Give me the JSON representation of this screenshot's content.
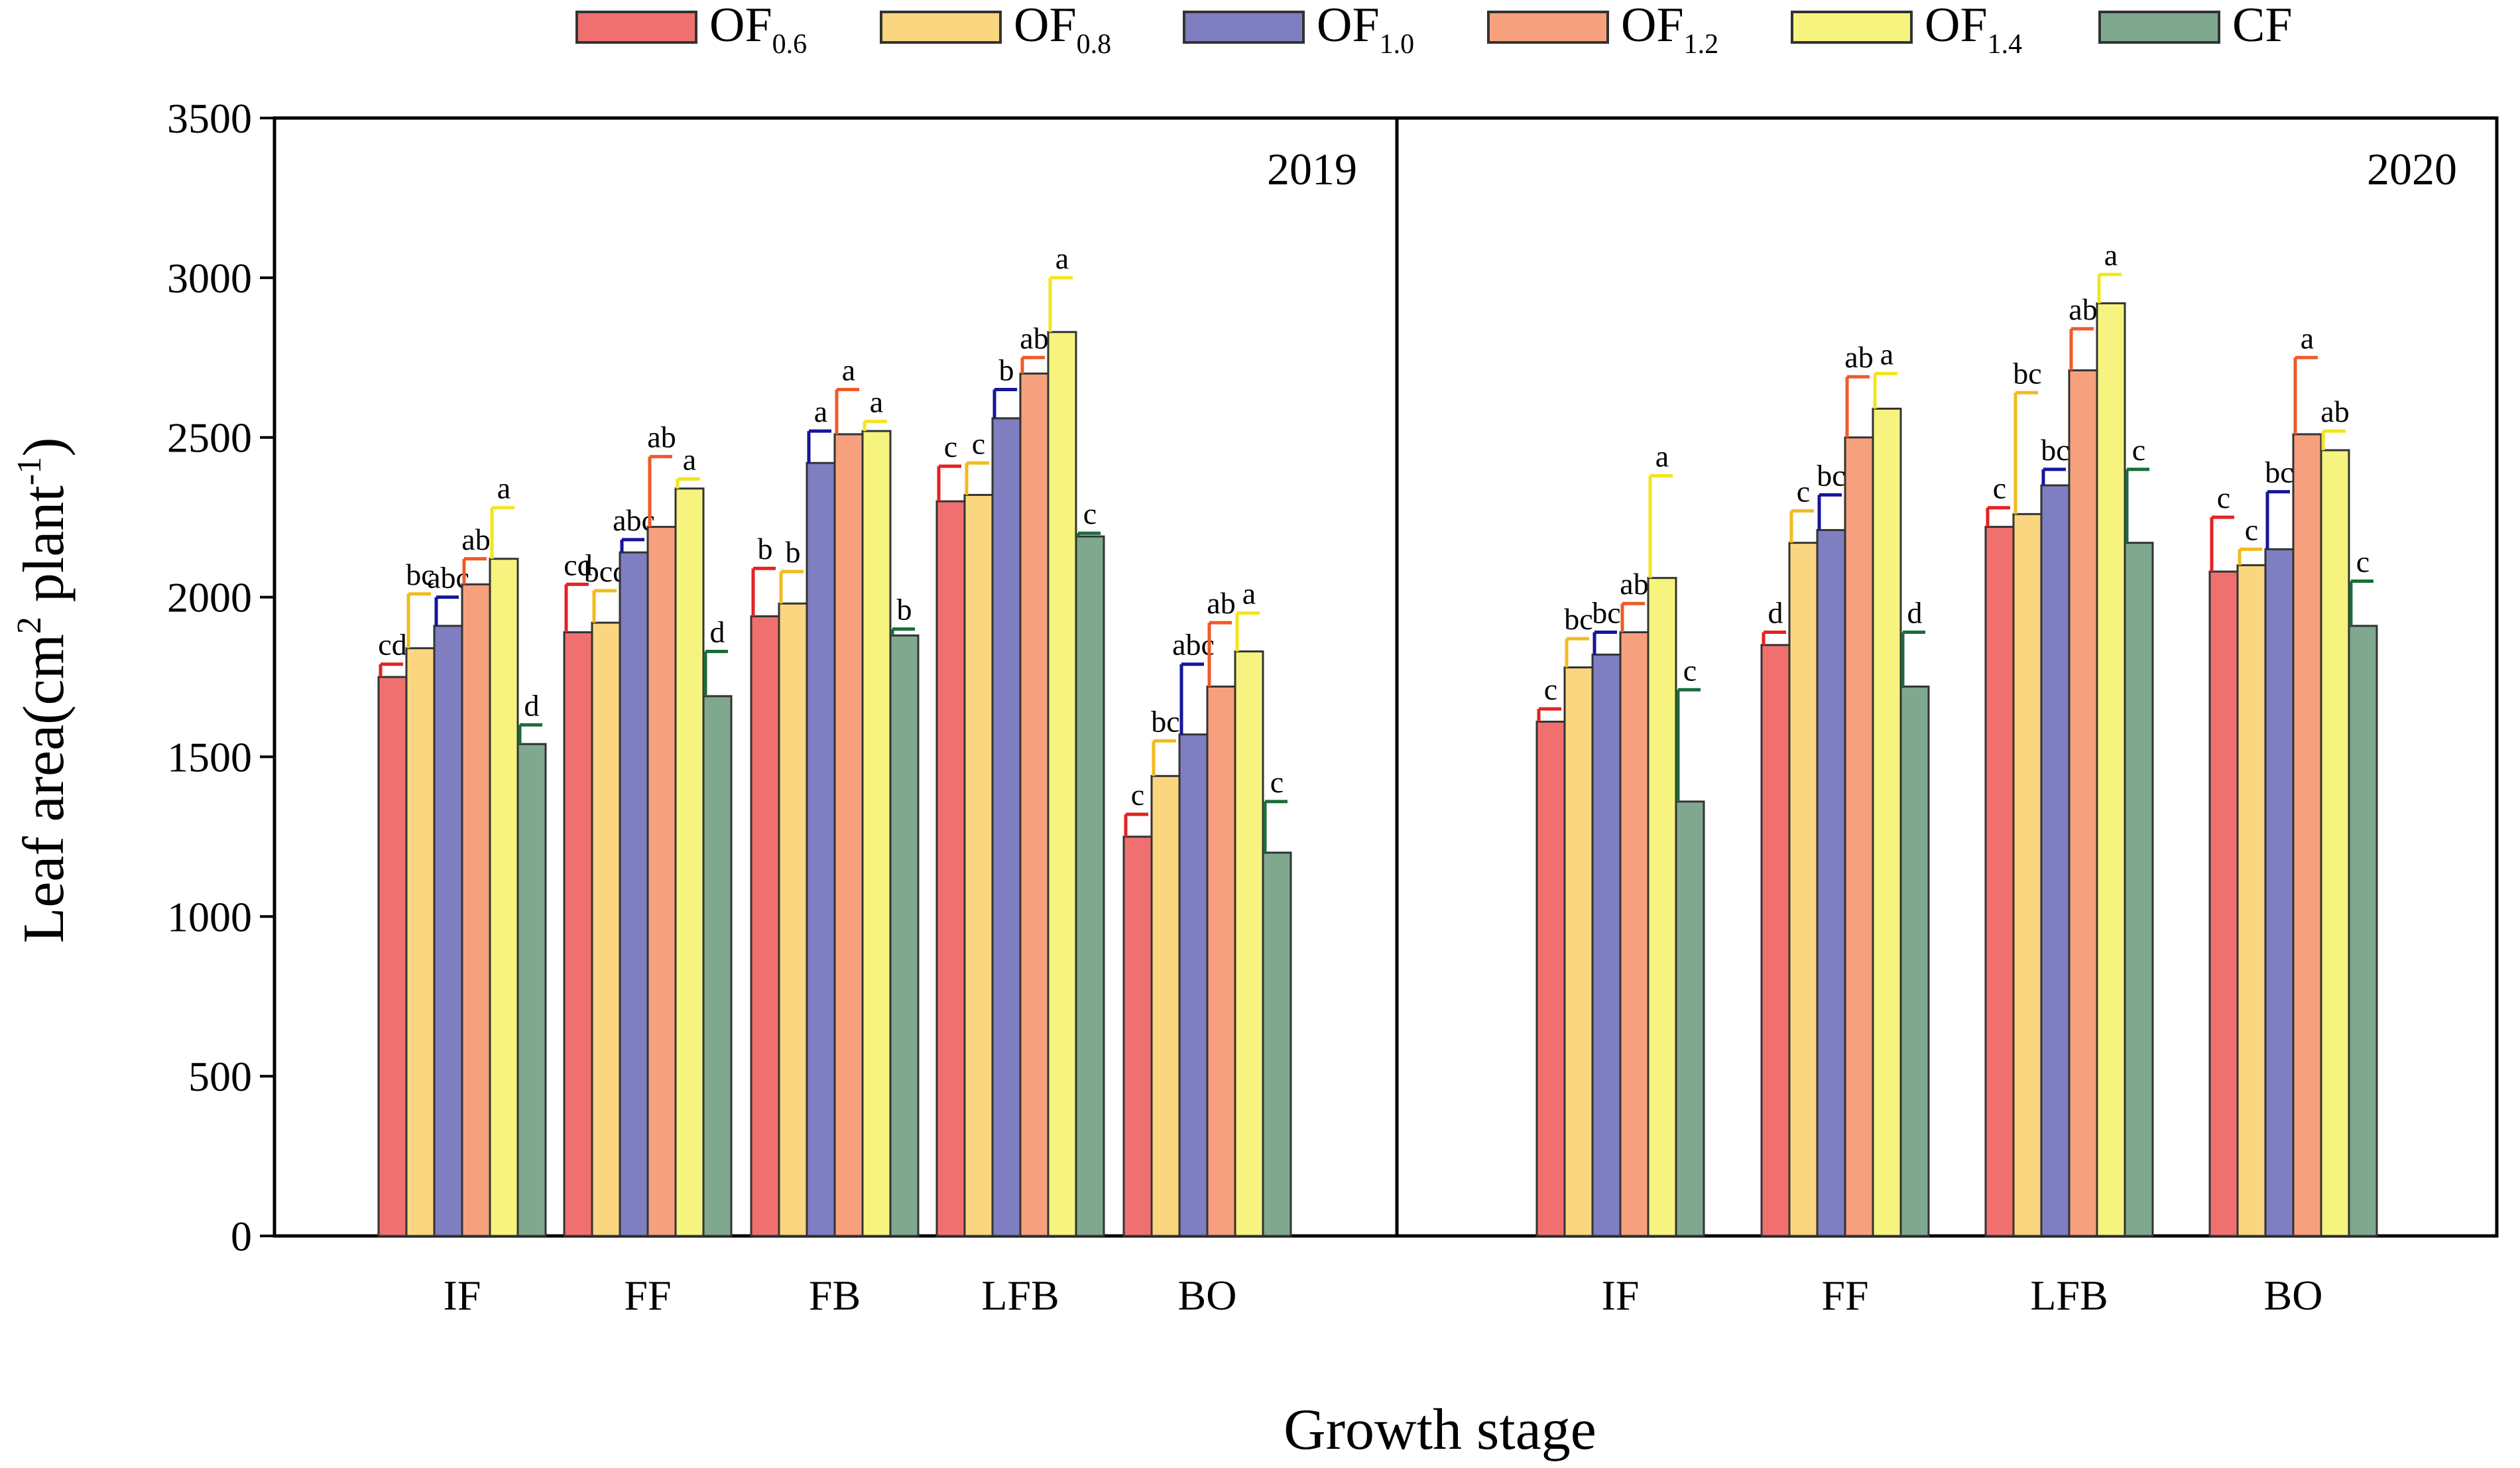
{
  "chart_data": {
    "type": "bar",
    "title": "",
    "xlabel": "Growth stage",
    "ylabel": {
      "main": "Leaf area(cm",
      "sup1": "2",
      "mid": " plant",
      "sup2": "-1",
      "end": ")"
    },
    "ylim": [
      0,
      3500
    ],
    "yticks": [
      0,
      500,
      1000,
      1500,
      2000,
      2500,
      3000,
      3500
    ],
    "grid": false,
    "legend_position": "top",
    "series": [
      {
        "name": "OF0.6",
        "base": "OF",
        "sub": "0.6",
        "color": "#F07070"
      },
      {
        "name": "OF0.8",
        "base": "OF",
        "sub": "0.8",
        "color": "#FBD680"
      },
      {
        "name": "OF1.0",
        "base": "OF",
        "sub": "1.0",
        "color": "#7E7EC0"
      },
      {
        "name": "OF1.2",
        "base": "OF",
        "sub": "1.2",
        "color": "#F7A07E"
      },
      {
        "name": "OF1.4",
        "base": "OF",
        "sub": "1.4",
        "color": "#F6F47E"
      },
      {
        "name": "CF",
        "base": "CF",
        "sub": "",
        "color": "#7FA88F"
      }
    ],
    "error_colors": [
      "#E32222",
      "#F2BB1E",
      "#15169A",
      "#F05A28",
      "#F2E51B",
      "#1C6B3A"
    ],
    "panels": [
      {
        "year": "2019",
        "categories": [
          "IF",
          "FF",
          "FB",
          "LFB",
          "BO"
        ],
        "values": [
          [
            1750,
            1840,
            1910,
            2040,
            2120,
            1540
          ],
          [
            1890,
            1920,
            2140,
            2220,
            2340,
            1690
          ],
          [
            1940,
            1980,
            2420,
            2510,
            2520,
            1880
          ],
          [
            2300,
            2320,
            2560,
            2700,
            2830,
            2190
          ],
          [
            1250,
            1440,
            1570,
            1720,
            1830,
            1200
          ]
        ],
        "errors": [
          [
            40,
            170,
            90,
            80,
            160,
            60
          ],
          [
            150,
            100,
            40,
            220,
            30,
            140
          ],
          [
            150,
            100,
            100,
            140,
            30,
            20
          ],
          [
            110,
            100,
            90,
            50,
            170,
            10
          ],
          [
            70,
            110,
            220,
            200,
            120,
            160
          ]
        ],
        "labels": [
          [
            "cd",
            "bc",
            "abc",
            "ab",
            "a",
            "d"
          ],
          [
            "cd",
            "bcd",
            "abc",
            "ab",
            "a",
            "d"
          ],
          [
            "b",
            "b",
            "a",
            "a",
            "a",
            "b"
          ],
          [
            "c",
            "c",
            "b",
            "ab",
            "a",
            "c"
          ],
          [
            "c",
            "bc",
            "abc",
            "ab",
            "a",
            "c"
          ]
        ]
      },
      {
        "year": "2020",
        "categories": [
          "IF",
          "FF",
          "LFB",
          "BO"
        ],
        "values": [
          [
            1610,
            1780,
            1820,
            1890,
            2060,
            1360
          ],
          [
            1850,
            2170,
            2210,
            2500,
            2590,
            1720
          ],
          [
            2220,
            2260,
            2350,
            2710,
            2920,
            2170
          ],
          [
            2080,
            2100,
            2150,
            2510,
            2460,
            1910
          ]
        ],
        "errors": [
          [
            40,
            90,
            70,
            90,
            320,
            350
          ],
          [
            40,
            100,
            110,
            190,
            110,
            170
          ],
          [
            60,
            380,
            50,
            130,
            90,
            230
          ],
          [
            170,
            50,
            180,
            240,
            60,
            140
          ]
        ],
        "labels": [
          [
            "c",
            "bc",
            "bc",
            "ab",
            "a",
            "c"
          ],
          [
            "d",
            "c",
            "bc",
            "ab",
            "a",
            "d"
          ],
          [
            "c",
            "bc",
            "bc",
            "ab",
            "a",
            "c"
          ],
          [
            "c",
            "c",
            "bc",
            "a",
            "ab",
            "c"
          ]
        ]
      }
    ]
  }
}
